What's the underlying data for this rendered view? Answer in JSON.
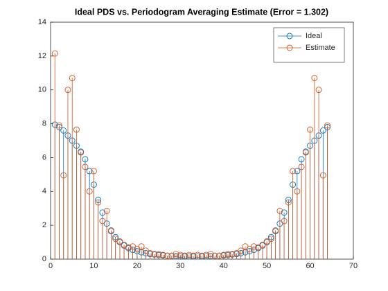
{
  "chart_data": {
    "type": "stem",
    "title": "Ideal PDS vs. Periodogram Averaging Estimate (Error =  1.302)",
    "x": [
      1,
      2,
      3,
      4,
      5,
      6,
      7,
      8,
      9,
      10,
      11,
      12,
      13,
      14,
      15,
      16,
      17,
      18,
      19,
      20,
      21,
      22,
      23,
      24,
      25,
      26,
      27,
      28,
      29,
      30,
      31,
      32,
      33,
      34,
      35,
      36,
      37,
      38,
      39,
      40,
      41,
      42,
      43,
      44,
      45,
      46,
      47,
      48,
      49,
      50,
      51,
      52,
      53,
      54,
      55,
      56,
      57,
      58,
      59,
      60,
      61,
      62,
      63,
      64
    ],
    "series": [
      {
        "name": "Ideal",
        "color": "#0072bd",
        "values": [
          7.95,
          7.8,
          7.6,
          7.3,
          7.0,
          6.7,
          6.35,
          5.9,
          5.2,
          4.4,
          3.5,
          2.75,
          2.1,
          1.65,
          1.3,
          1.0,
          0.8,
          0.65,
          0.55,
          0.47,
          0.4,
          0.35,
          0.3,
          0.27,
          0.24,
          0.22,
          0.2,
          0.19,
          0.18,
          0.17,
          0.16,
          0.16,
          0.16,
          0.16,
          0.16,
          0.17,
          0.18,
          0.19,
          0.2,
          0.22,
          0.24,
          0.27,
          0.3,
          0.35,
          0.4,
          0.47,
          0.55,
          0.65,
          0.8,
          1.0,
          1.3,
          1.65,
          2.1,
          2.75,
          3.5,
          4.4,
          5.2,
          5.9,
          6.35,
          6.7,
          7.0,
          7.3,
          7.6,
          7.8
        ]
      },
      {
        "name": "Estimate",
        "color": "#d95319",
        "values": [
          12.15,
          7.9,
          4.95,
          10.0,
          10.7,
          7.65,
          6.3,
          5.45,
          4.0,
          5.2,
          3.35,
          2.25,
          2.85,
          1.7,
          1.2,
          1.05,
          0.85,
          0.7,
          0.75,
          0.6,
          0.75,
          0.5,
          0.35,
          0.3,
          0.3,
          0.25,
          0.2,
          0.2,
          0.3,
          0.25,
          0.2,
          0.25,
          0.2,
          0.25,
          0.2,
          0.25,
          0.3,
          0.2,
          0.2,
          0.25,
          0.3,
          0.3,
          0.35,
          0.5,
          0.75,
          0.6,
          0.75,
          0.7,
          0.85,
          1.05,
          1.2,
          1.7,
          2.85,
          2.25,
          3.35,
          5.2,
          4.0,
          5.45,
          6.3,
          7.65,
          10.7,
          10.0,
          4.95,
          7.9
        ]
      }
    ],
    "xlim": [
      0,
      70
    ],
    "xticks": [
      0,
      10,
      20,
      30,
      40,
      50,
      60,
      70
    ],
    "ylim": [
      0,
      14
    ],
    "yticks": [
      0,
      2,
      4,
      6,
      8,
      10,
      12,
      14
    ],
    "grid": false,
    "legend": "northeast"
  }
}
